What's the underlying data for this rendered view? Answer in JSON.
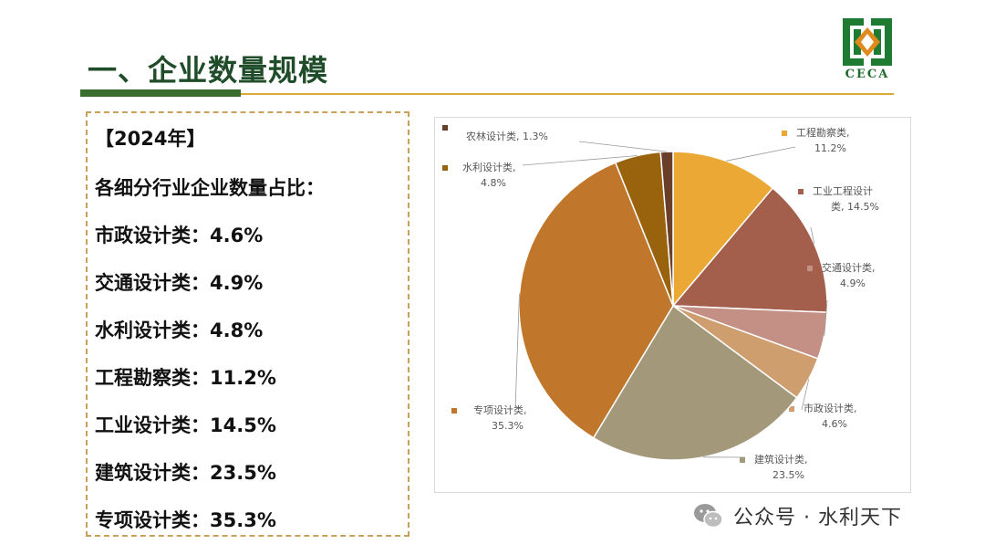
{
  "slide": {
    "title": "一、企业数量规模",
    "logo_text": "CECA"
  },
  "info": {
    "year": "【2024年】",
    "heading": "各细分行业企业数量占比：",
    "items": [
      {
        "label": "市政设计类：",
        "value": "4.6%"
      },
      {
        "label": "交通设计类：",
        "value": "4.9%"
      },
      {
        "label": "水利设计类：",
        "value": "4.8%"
      },
      {
        "label": "工程勘察类：",
        "value": "11.2%"
      },
      {
        "label": "工业设计类：",
        "value": "14.5%"
      },
      {
        "label": "建筑设计类：",
        "value": "23.5%"
      },
      {
        "label": "专项设计类：",
        "value": "35.3%"
      }
    ]
  },
  "chart_data": {
    "type": "pie",
    "title": "",
    "start_angle_deg": 0,
    "direction": "clockwise",
    "slices": [
      {
        "name": "工程勘察类",
        "value": 11.2,
        "label_line1": "工程勘察类,",
        "label_line2": "11.2%",
        "color": "#eba834"
      },
      {
        "name": "工业工程设计类",
        "value": 14.5,
        "label_line1": "工业工程设计",
        "label_line2": "类, 14.5%",
        "color": "#a35f4c"
      },
      {
        "name": "交通设计类",
        "value": 4.9,
        "label_line1": "交通设计类,",
        "label_line2": "4.9%",
        "color": "#c49085"
      },
      {
        "name": "市政设计类",
        "value": 4.6,
        "label_line1": "市政设计类,",
        "label_line2": "4.6%",
        "color": "#cf9e6e"
      },
      {
        "name": "建筑设计类",
        "value": 23.5,
        "label_line1": "建筑设计类,",
        "label_line2": "23.5%",
        "color": "#a3997a"
      },
      {
        "name": "专项设计类",
        "value": 35.3,
        "label_line1": "专项设计类,",
        "label_line2": "35.3%",
        "color": "#c0772c"
      },
      {
        "name": "水利设计类",
        "value": 4.8,
        "label_line1": "水利设计类,",
        "label_line2": "4.8%",
        "color": "#99620c"
      },
      {
        "name": "农林设计类",
        "value": 1.3,
        "label_line1": "农林设计类, 1.3%",
        "label_line2": "",
        "color": "#6a3f2a"
      }
    ]
  },
  "watermark": {
    "text": "公众号 · 水利天下"
  }
}
